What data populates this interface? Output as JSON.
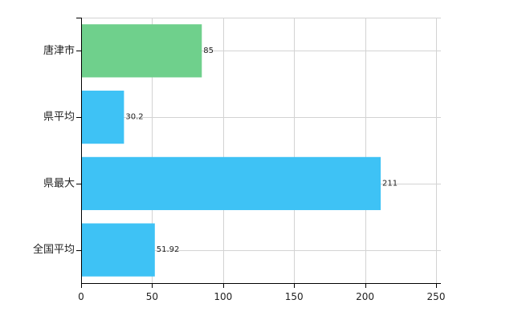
{
  "chart_data": {
    "type": "bar",
    "orientation": "horizontal",
    "title": "",
    "xlabel": "",
    "ylabel": "",
    "xlim": [
      0,
      250
    ],
    "x_ticks": [
      0,
      50,
      100,
      150,
      200,
      250
    ],
    "grid": true,
    "legend": "none",
    "categories": [
      "唐津市",
      "県平均",
      "県最大",
      "全国平均"
    ],
    "values": [
      85,
      30.2,
      211,
      51.92
    ],
    "value_labels": [
      "85",
      "30.2",
      "211",
      "51.92"
    ],
    "colors": [
      "#6fd08c",
      "#3ec2f5",
      "#3ec2f5",
      "#3ec2f5"
    ]
  },
  "colors": {
    "highlight": "#6fd08c",
    "default": "#3ec2f5",
    "grid": "#d3d3d3",
    "axis": "#000000"
  }
}
